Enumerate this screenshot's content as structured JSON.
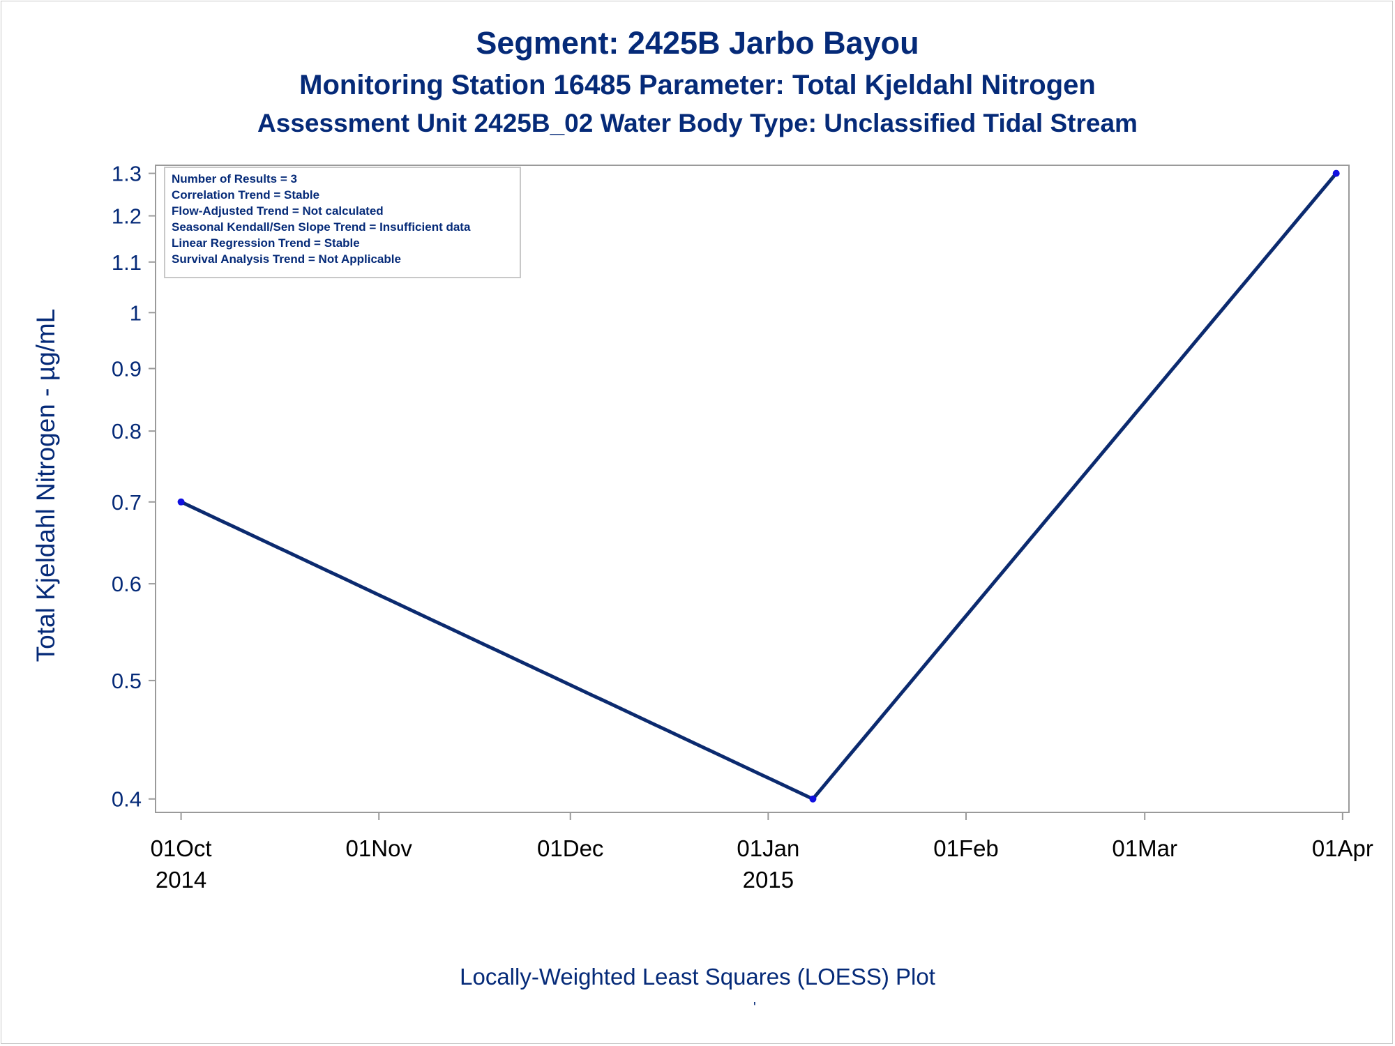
{
  "header": {
    "title": "Segment: 2425B  Jarbo Bayou",
    "subtitle1": "Monitoring Station 16485 Parameter: Total Kjeldahl Nitrogen",
    "subtitle2": "Assessment Unit 2425B_02   Water Body Type: Unclassified Tidal Stream"
  },
  "footer": {
    "note": "Locally-Weighted Least Squares (LOESS) Plot",
    "mark": "'"
  },
  "stats_box": [
    "Number of Results = 3",
    "Correlation Trend = Stable",
    "Flow-Adjusted Trend = Not calculated",
    "Seasonal Kendall/Sen Slope Trend = Insufficient data",
    "Linear Regression Trend = Stable",
    "Survival Analysis Trend = Not Applicable"
  ],
  "colors": {
    "text": "#052a78",
    "line": "#0b2a6f",
    "marker": "#1010e0",
    "axis": "#9a9a9a"
  },
  "chart_data": {
    "type": "line",
    "ylabel": "Total Kjeldahl Nitrogen -  µg/mL",
    "xlabel": "",
    "y_scale": "log",
    "ylim": [
      0.39,
      1.32
    ],
    "xlim": [
      "2014-09-27",
      "2015-04-02"
    ],
    "y_ticks": [
      0.4,
      0.5,
      0.6,
      0.7,
      0.8,
      0.9,
      1,
      1.1,
      1.2,
      1.3
    ],
    "y_tick_labels": [
      "0.4",
      "0.5",
      "0.6",
      "0.7",
      "0.8",
      "0.9",
      "1",
      "1.1",
      "1.2",
      "1.3"
    ],
    "x_ticks": [
      {
        "date": "2014-10-01",
        "label": "01Oct",
        "year": "2014"
      },
      {
        "date": "2014-11-01",
        "label": "01Nov",
        "year": ""
      },
      {
        "date": "2014-12-01",
        "label": "01Dec",
        "year": ""
      },
      {
        "date": "2015-01-01",
        "label": "01Jan",
        "year": "2015"
      },
      {
        "date": "2015-02-01",
        "label": "01Feb",
        "year": ""
      },
      {
        "date": "2015-03-01",
        "label": "01Mar",
        "year": ""
      },
      {
        "date": "2015-04-01",
        "label": "01Apr",
        "year": ""
      }
    ],
    "series": [
      {
        "points": [
          {
            "date": "2014-10-01",
            "value": 0.7
          },
          {
            "date": "2015-01-08",
            "value": 0.4
          },
          {
            "date": "2015-03-31",
            "value": 1.3
          }
        ]
      }
    ],
    "grid": false
  }
}
